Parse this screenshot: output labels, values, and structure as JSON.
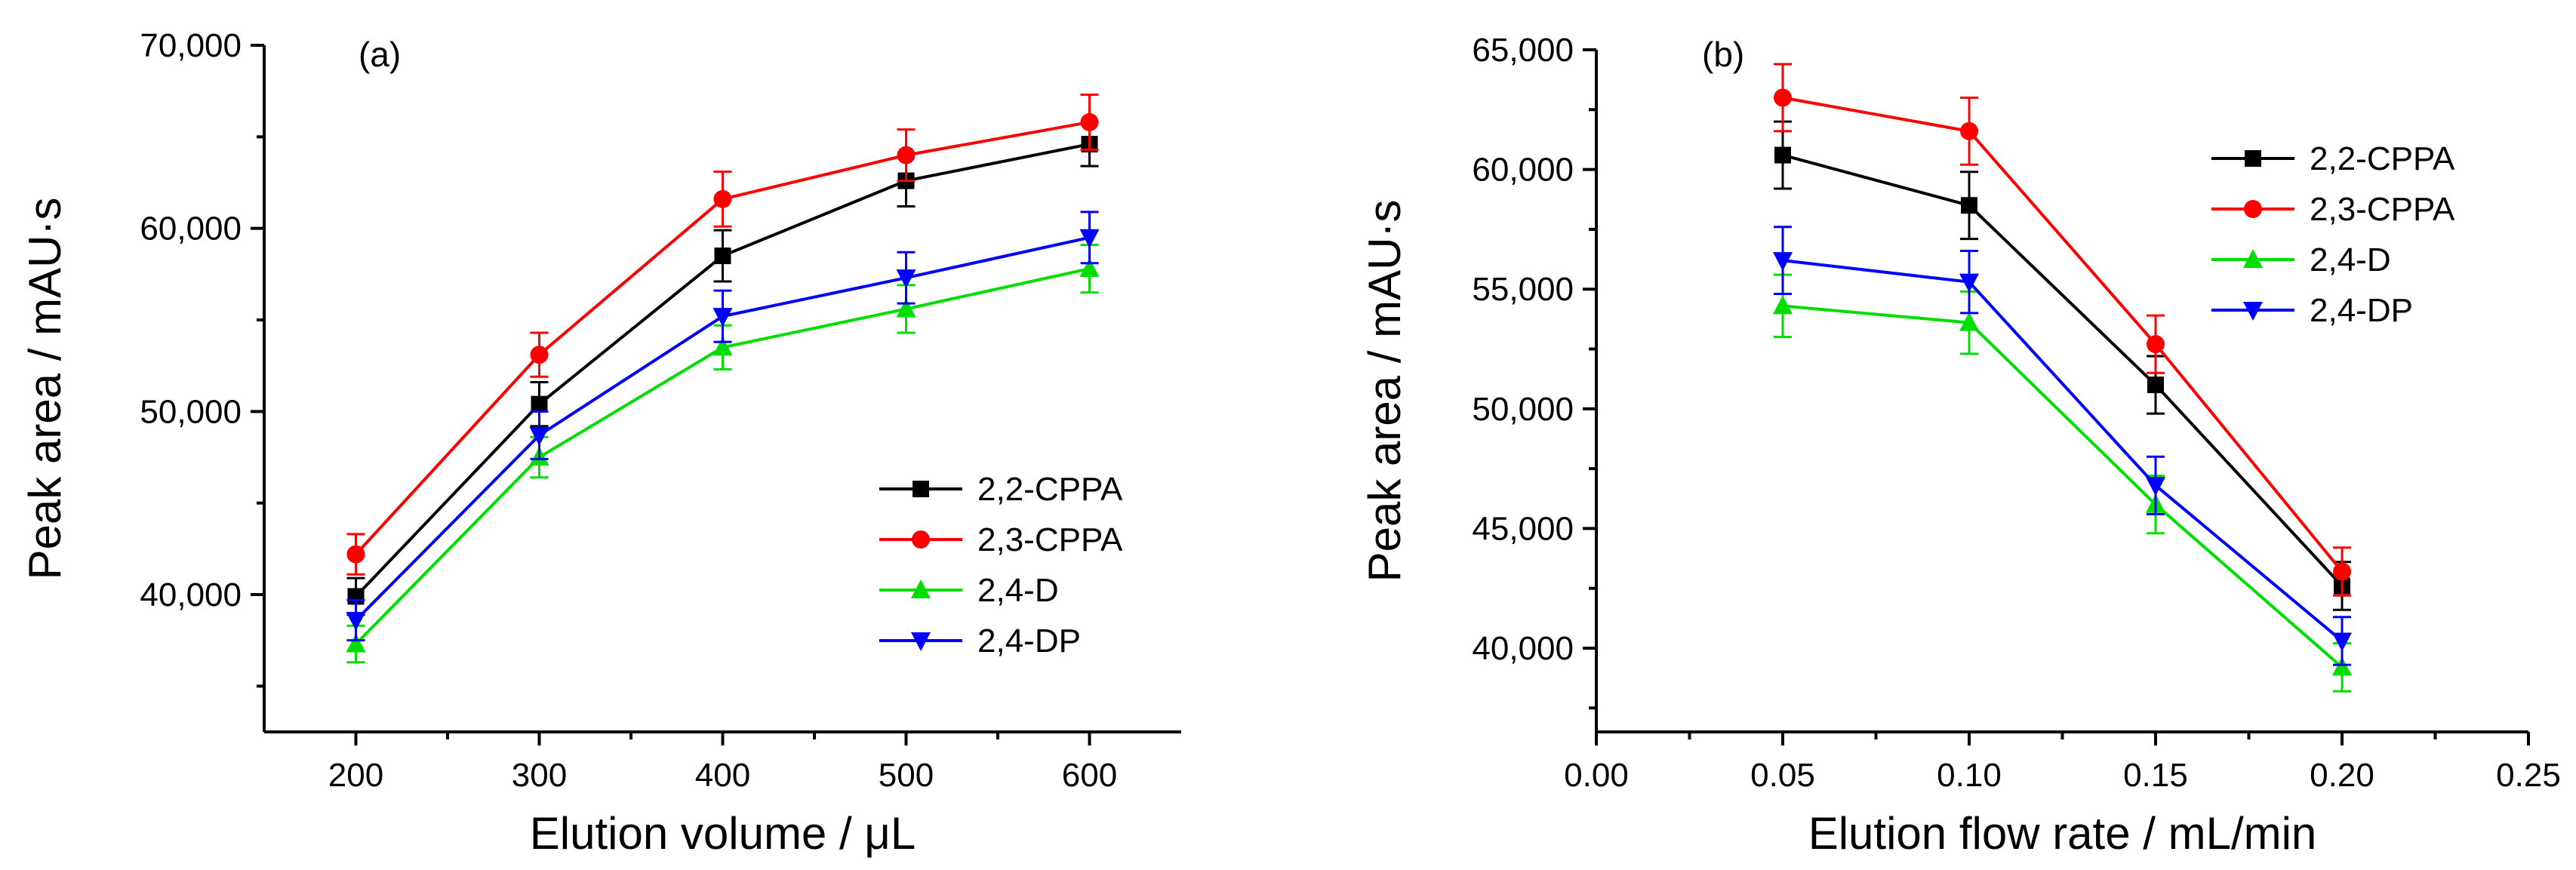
{
  "chart_data": [
    {
      "type": "line",
      "panel_label": "(a)",
      "title": "",
      "xlabel": "Elution volume / μL",
      "ylabel": "Peak area / mAU·s",
      "xlim": [
        150,
        650
      ],
      "ylim": [
        32500,
        70000
      ],
      "x_ticks": [
        200,
        300,
        400,
        500,
        600
      ],
      "x_tick_labels": [
        "200",
        "300",
        "400",
        "500",
        "600"
      ],
      "y_ticks": [
        40000,
        50000,
        60000,
        70000
      ],
      "y_tick_labels": [
        "40,000",
        "50,000",
        "60,000",
        "70,000"
      ],
      "grid": false,
      "legend_position": "bottom-right",
      "x": [
        200,
        300,
        400,
        500,
        600
      ],
      "series": [
        {
          "name": "2,2-CPPA",
          "color": "#000000",
          "marker": "square",
          "values": [
            39900,
            50400,
            58500,
            62600,
            64600
          ],
          "errors": [
            1000,
            1200,
            1400,
            1400,
            1200
          ]
        },
        {
          "name": "2,3-CPPA",
          "color": "#ff0000",
          "marker": "circle",
          "values": [
            42200,
            53100,
            61600,
            64000,
            65800
          ],
          "errors": [
            1100,
            1200,
            1500,
            1400,
            1500
          ]
        },
        {
          "name": "2,4-D",
          "color": "#00dd00",
          "marker": "triangle-up",
          "values": [
            37300,
            47500,
            53500,
            55600,
            57800
          ],
          "errors": [
            1000,
            1100,
            1200,
            1300,
            1300
          ]
        },
        {
          "name": "2,4-DP",
          "color": "#0000ff",
          "marker": "triangle-down",
          "values": [
            38600,
            48700,
            55200,
            57300,
            59500
          ],
          "errors": [
            1100,
            1300,
            1400,
            1400,
            1400
          ]
        }
      ]
    },
    {
      "type": "line",
      "panel_label": "(b)",
      "title": "",
      "xlabel": "Elution flow rate / mL/min",
      "ylabel": "Peak area / mAU·s",
      "xlim": [
        0,
        0.25
      ],
      "ylim": [
        36500,
        65000
      ],
      "x_ticks": [
        0,
        0.05,
        0.1,
        0.15,
        0.2,
        0.25
      ],
      "x_tick_labels": [
        "0.00",
        "0.05",
        "0.10",
        "0.15",
        "0.20",
        "0.25"
      ],
      "y_ticks": [
        40000,
        45000,
        50000,
        55000,
        60000,
        65000
      ],
      "y_tick_labels": [
        "40,000",
        "45,000",
        "50,000",
        "55,000",
        "60,000",
        "65,000"
      ],
      "grid": false,
      "legend_position": "top-right",
      "x": [
        0.05,
        0.1,
        0.15,
        0.2
      ],
      "series": [
        {
          "name": "2,2-CPPA",
          "color": "#000000",
          "marker": "square",
          "values": [
            60600,
            58500,
            51000,
            42600
          ],
          "errors": [
            1400,
            1400,
            1200,
            1000
          ]
        },
        {
          "name": "2,3-CPPA",
          "color": "#ff0000",
          "marker": "circle",
          "values": [
            63000,
            61600,
            52700,
            43200
          ],
          "errors": [
            1400,
            1400,
            1200,
            1000
          ]
        },
        {
          "name": "2,4-D",
          "color": "#00dd00",
          "marker": "triangle-up",
          "values": [
            54300,
            53600,
            46000,
            39200
          ],
          "errors": [
            1300,
            1300,
            1200,
            1000
          ]
        },
        {
          "name": "2,4-DP",
          "color": "#0000ff",
          "marker": "triangle-down",
          "values": [
            56200,
            55300,
            46800,
            40300
          ],
          "errors": [
            1400,
            1300,
            1200,
            1000
          ]
        }
      ]
    }
  ]
}
